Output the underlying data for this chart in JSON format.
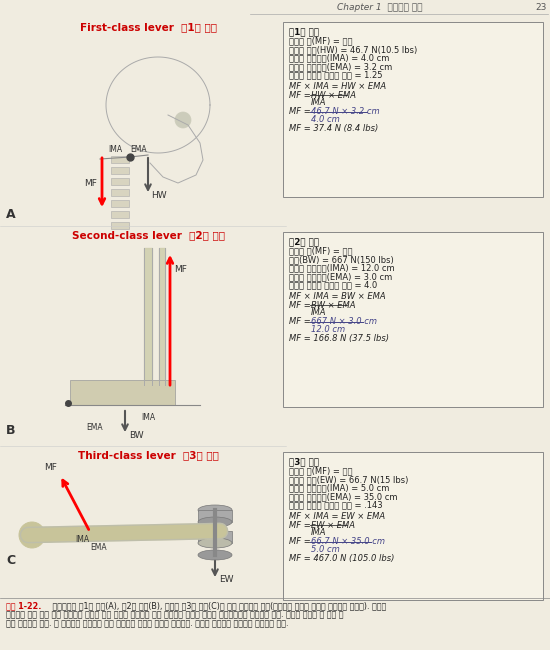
{
  "page_header": "Chapter 1  운동학의 소개",
  "page_number": "23",
  "bg_color": "#f0ece0",
  "section_A_title": "First-class lever  제1형 지레",
  "section_B_title": "Second-class lever  제2형 지레",
  "section_C_title": "Third-class lever  제3형 지레",
  "title_color": "#cc0000",
  "box1_title": "제1형 지레",
  "box1_lines": [
    "근육의 힘(MF) = 모름",
    "머리의 무게(HW) = 46.7 N(10.5 lbs)",
    "내적인 모멘트팩(IMA) = 4.0 cm",
    "외적인 모멘트팩(EMA) = 3.2 cm",
    "근골격 지레의 역학적 이득 = 1.25"
  ],
  "box1_f1": "MF × IMA = HW × EMA",
  "box1_f2_left": "MF =",
  "box1_f2_num": "HW × EMA",
  "box1_f2_den": "IMA",
  "box1_f3_prefix": "MF =",
  "box1_f3_num": "46.7 N × 3.2 cm",
  "box1_f3_den": "4.0 cm",
  "box1_f4": "MF = 37.4 N (8.4 lbs)",
  "box2_title": "제2형 지레",
  "box2_lines": [
    "근육의 힘(MF) = 모름",
    "체중(BW) = 667 N(150 lbs)",
    "내적인 모멘트팩(IMA) = 12.0 cm",
    "외적인 모멘트팩(EMA) = 3.0 cm",
    "근골격 지레의 역학적 이득 = 4.0"
  ],
  "box2_f1": "MF × IMA = BW × EMA",
  "box2_f2_left": "MF =",
  "box2_f2_num": "BW × EMA",
  "box2_f2_den": "IMA",
  "box2_f3_prefix": "MF =",
  "box2_f3_num": "667 N × 3.0 cm",
  "box2_f3_den": "12.0 cm",
  "box2_f4": "MF = 166.8 N (37.5 lbs)",
  "box3_title": "제3형 지레",
  "box3_lines": [
    "근육의 힘(MF) = 모름",
    "외적인 무게(EW) = 66.7 N(15 lbs)",
    "내적인 모멘트팩(IMA) = 5.0 cm",
    "외적인 모멘트팩(EMA) = 35.0 cm",
    "근골격 지레의 역학적 이득 = .143"
  ],
  "box3_f1": "MF × IMA = EW × EMA",
  "box3_f2_left": "MF =",
  "box3_f2_num": "EW × EMA",
  "box3_f2_den": "IMA",
  "box3_f3_prefix": "MF =",
  "box3_f3_num": "66.7 N × 35.0 cm",
  "box3_f3_den": "5.0 cm",
  "box3_f4": "MF = 467.0 N (105.0 lbs)",
  "caption_red": "그림 1-22.",
  "caption_line1": " 인체에서의 제1형 지레(A), 제2형 지레(B), 그리고 제3형 지레(C)의 예를 보여주고 있다(벡터들은 정확한 비율로 그려지지 않았음). 그림의",
  "caption_line2": "오른쪽에 있는 상자 안의 내용들은 정적인 회전 평형을 유지하기 위해 요구되는 근력이 어떻게 계산되는지를 보여주고 있다. 역학적 이득은 각 상자 안",
  "caption_line3": "에서 보이주고 있다. 각 그림에서 나타나고 있는 근활동의 유형은 동첩성 활동이다. 따라서 관절에서 발생되는 움직임은 없다."
}
